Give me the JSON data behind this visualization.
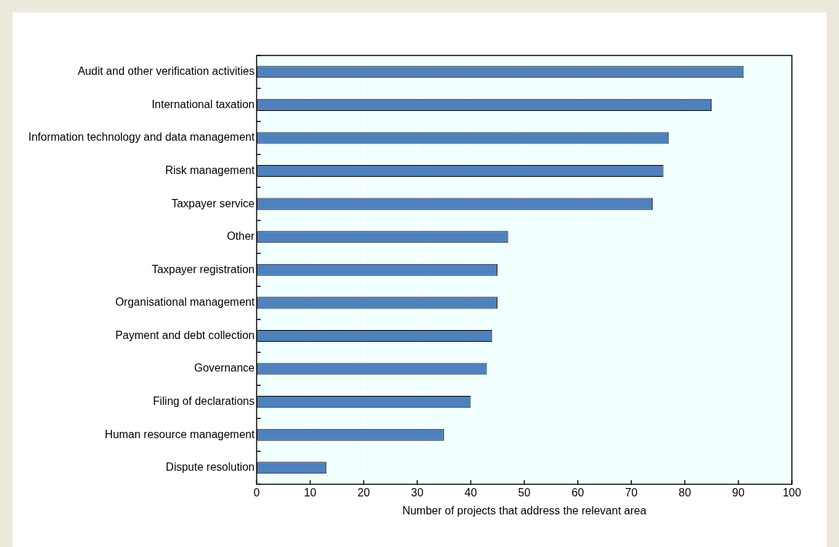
{
  "chart_data": {
    "type": "bar",
    "orientation": "horizontal",
    "xlabel": "Number of projects that address the relevant area",
    "categories": [
      "Audit and other verification activities",
      "International taxation",
      "Information technology and data management",
      "Risk management",
      "Taxpayer service",
      "Other",
      "Taxpayer registration",
      "Organisational management",
      "Payment and debt collection",
      "Governance",
      "Filing of declarations",
      "Human resource management",
      "Dispute resolution"
    ],
    "values": [
      91,
      85,
      77,
      76,
      74,
      47,
      45,
      45,
      44,
      43,
      40,
      35,
      13
    ],
    "color": "#4f81bd",
    "xlim": [
      0,
      100
    ],
    "xticks": [
      0,
      10,
      20,
      30,
      40,
      50,
      60,
      70,
      80,
      90,
      100
    ],
    "grid": "x",
    "legend": false
  }
}
